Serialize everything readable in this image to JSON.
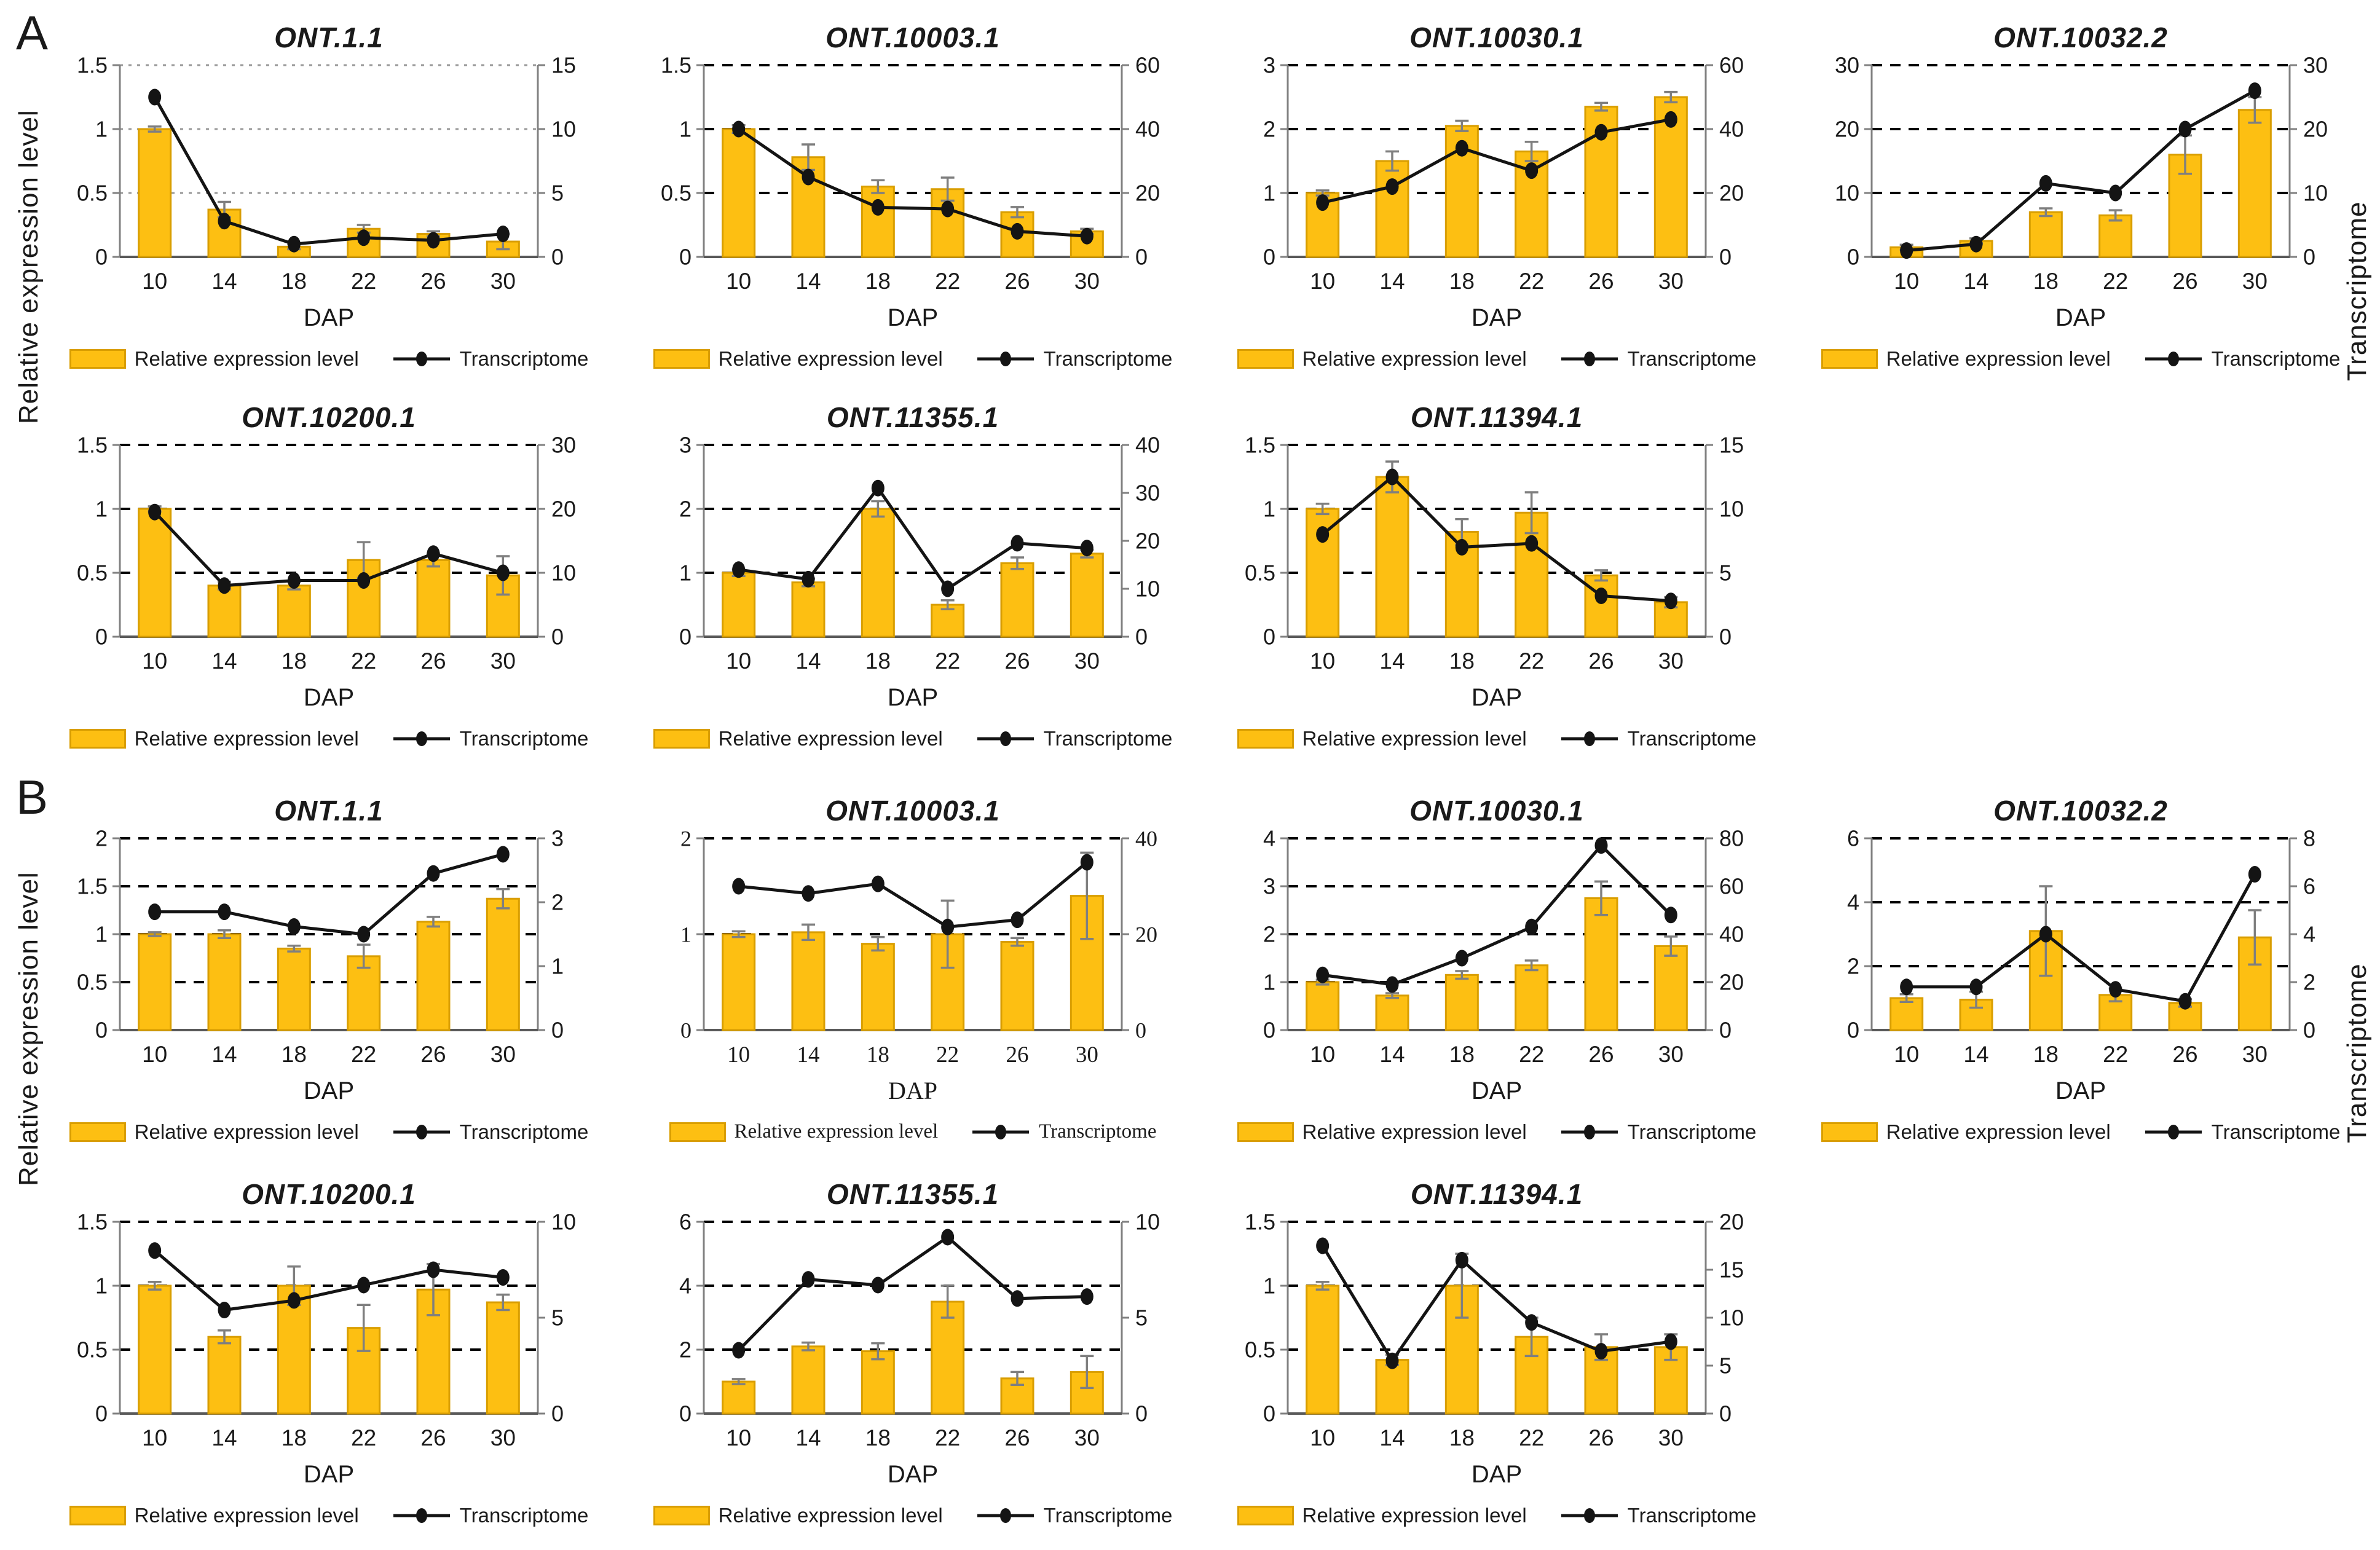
{
  "figure": {
    "panel_a_label": "A",
    "panel_b_label": "B",
    "axis_left_label": "Relative expression level",
    "axis_right_label": "Transcriptome",
    "x_axis_label": "DAP"
  },
  "legend": {
    "bar_label": "Relative expression level",
    "line_label": "Transcriptome"
  },
  "colors": {
    "bar_fill": "#fdbf12",
    "bar_border": "#d99e00",
    "line": "#141414",
    "marker": "#141414",
    "error_bar": "#7f7f7f",
    "axis_line": "#808080",
    "bottom_axis": "#595959",
    "gridline": "#000000",
    "gridline_light": "#999999"
  },
  "chart_data": [
    {
      "panel": "A",
      "row": 1,
      "col": 1,
      "type": "bar+line",
      "title": "ONT.1.1",
      "xlabel": "DAP",
      "categories": [
        10,
        14,
        18,
        22,
        26,
        30
      ],
      "left_axis": {
        "ticks": [
          0,
          0.5,
          1,
          1.5
        ],
        "max": 1.5
      },
      "right_axis": {
        "ticks": [
          0,
          5,
          10,
          15
        ],
        "max": 15
      },
      "bars": [
        1.0,
        0.37,
        0.08,
        0.22,
        0.18,
        0.12
      ],
      "bar_errors": [
        0.02,
        0.06,
        0.02,
        0.03,
        0.02,
        0.06
      ],
      "line": [
        12.5,
        2.8,
        1.0,
        1.5,
        1.3,
        1.8
      ],
      "grid_style": "dotted",
      "serif": false
    },
    {
      "panel": "A",
      "row": 1,
      "col": 2,
      "type": "bar+line",
      "title": "ONT.10003.1",
      "xlabel": "DAP",
      "categories": [
        10,
        14,
        18,
        22,
        26,
        30
      ],
      "left_axis": {
        "ticks": [
          0,
          0.5,
          1,
          1.5
        ],
        "max": 1.5
      },
      "right_axis": {
        "ticks": [
          0,
          20,
          40,
          60
        ],
        "max": 60
      },
      "bars": [
        1.0,
        0.78,
        0.55,
        0.53,
        0.35,
        0.2
      ],
      "bar_errors": [
        0.03,
        0.1,
        0.05,
        0.09,
        0.04,
        0.02
      ],
      "line": [
        40,
        25,
        15.5,
        15,
        8,
        6.5
      ],
      "grid_style": "dashed",
      "serif": false
    },
    {
      "panel": "A",
      "row": 1,
      "col": 3,
      "type": "bar+line",
      "title": "ONT.10030.1",
      "xlabel": "DAP",
      "categories": [
        10,
        14,
        18,
        22,
        26,
        30
      ],
      "left_axis": {
        "ticks": [
          0,
          1,
          2,
          3
        ],
        "max": 3
      },
      "right_axis": {
        "ticks": [
          0,
          20,
          40,
          60
        ],
        "max": 60
      },
      "bars": [
        1.0,
        1.5,
        2.05,
        1.65,
        2.35,
        2.5
      ],
      "bar_errors": [
        0.04,
        0.15,
        0.08,
        0.15,
        0.06,
        0.08
      ],
      "line": [
        17,
        22,
        34,
        27,
        39,
        43
      ],
      "grid_style": "dashed",
      "serif": false
    },
    {
      "panel": "A",
      "row": 1,
      "col": 4,
      "type": "bar+line",
      "title": "ONT.10032.2",
      "xlabel": "DAP",
      "categories": [
        10,
        14,
        18,
        22,
        26,
        30
      ],
      "left_axis": {
        "ticks": [
          0,
          10,
          20,
          30
        ],
        "max": 30
      },
      "right_axis": {
        "ticks": [
          0,
          10,
          20,
          30
        ],
        "max": 30
      },
      "bars": [
        1.5,
        2.5,
        7,
        6.5,
        16,
        23
      ],
      "bar_errors": [
        0.4,
        0.4,
        0.6,
        0.8,
        3.0,
        2.0
      ],
      "line": [
        1,
        2,
        11.5,
        10,
        20,
        26
      ],
      "grid_style": "dashed",
      "serif": false
    },
    {
      "panel": "A",
      "row": 2,
      "col": 1,
      "type": "bar+line",
      "title": "ONT.10200.1",
      "xlabel": "DAP",
      "categories": [
        10,
        14,
        18,
        22,
        26,
        30
      ],
      "left_axis": {
        "ticks": [
          0,
          0.5,
          1,
          1.5
        ],
        "max": 1.5
      },
      "right_axis": {
        "ticks": [
          0,
          10,
          20,
          30
        ],
        "max": 30
      },
      "bars": [
        1.0,
        0.4,
        0.4,
        0.6,
        0.6,
        0.48
      ],
      "bar_errors": [
        0.02,
        0.03,
        0.03,
        0.14,
        0.05,
        0.15
      ],
      "line": [
        19.5,
        8,
        8.8,
        8.8,
        13,
        10
      ],
      "grid_style": "dashed",
      "serif": false
    },
    {
      "panel": "A",
      "row": 2,
      "col": 2,
      "type": "bar+line",
      "title": "ONT.11355.1",
      "xlabel": "DAP",
      "categories": [
        10,
        14,
        18,
        22,
        26,
        30
      ],
      "left_axis": {
        "ticks": [
          0,
          1,
          2,
          3
        ],
        "max": 3
      },
      "right_axis": {
        "ticks": [
          0,
          10,
          20,
          30,
          40
        ],
        "max": 40
      },
      "bars": [
        1.0,
        0.85,
        2.0,
        0.5,
        1.15,
        1.3
      ],
      "bar_errors": [
        0.05,
        0.06,
        0.12,
        0.07,
        0.09,
        0.06
      ],
      "line": [
        14,
        12,
        31,
        10,
        19.5,
        18.5
      ],
      "grid_style": "dashed",
      "serif": false
    },
    {
      "panel": "A",
      "row": 2,
      "col": 3,
      "type": "bar+line",
      "title": "ONT.11394.1",
      "xlabel": "DAP",
      "categories": [
        10,
        14,
        18,
        22,
        26,
        30
      ],
      "left_axis": {
        "ticks": [
          0,
          0.5,
          1,
          1.5
        ],
        "max": 1.5
      },
      "right_axis": {
        "ticks": [
          0,
          5,
          10,
          15
        ],
        "max": 15
      },
      "bars": [
        1.0,
        1.25,
        0.82,
        0.97,
        0.48,
        0.27
      ],
      "bar_errors": [
        0.04,
        0.12,
        0.1,
        0.16,
        0.04,
        0.04
      ],
      "line": [
        8,
        12.5,
        7,
        7.3,
        3.2,
        2.8
      ],
      "grid_style": "dashed",
      "serif": false
    },
    {
      "panel": "B",
      "row": 1,
      "col": 1,
      "type": "bar+line",
      "title": "ONT.1.1",
      "xlabel": "DAP",
      "categories": [
        10,
        14,
        18,
        22,
        26,
        30
      ],
      "left_axis": {
        "ticks": [
          0,
          0.5,
          1,
          1.5,
          2
        ],
        "max": 2
      },
      "right_axis": {
        "ticks": [
          0,
          1,
          2,
          3
        ],
        "max": 3
      },
      "bars": [
        1.0,
        1.0,
        0.85,
        0.77,
        1.13,
        1.37
      ],
      "bar_errors": [
        0.02,
        0.04,
        0.03,
        0.12,
        0.05,
        0.1
      ],
      "line": [
        1.85,
        1.85,
        1.62,
        1.5,
        2.45,
        2.75
      ],
      "grid_style": "dashed",
      "serif": false
    },
    {
      "panel": "B",
      "row": 1,
      "col": 2,
      "type": "bar+line",
      "title": "ONT.10003.1",
      "xlabel": "DAP",
      "categories": [
        10,
        14,
        18,
        22,
        26,
        30
      ],
      "left_axis": {
        "ticks": [
          0,
          1,
          2
        ],
        "max": 2
      },
      "right_axis": {
        "ticks": [
          0,
          20,
          40
        ],
        "max": 40
      },
      "bars": [
        1.0,
        1.02,
        0.9,
        1.0,
        0.92,
        1.4
      ],
      "bar_errors": [
        0.03,
        0.08,
        0.07,
        0.35,
        0.04,
        0.45
      ],
      "line": [
        30,
        28.5,
        30.5,
        21.5,
        23,
        35
      ],
      "grid_style": "dashed",
      "serif": true
    },
    {
      "panel": "B",
      "row": 1,
      "col": 3,
      "type": "bar+line",
      "title": "ONT.10030.1",
      "xlabel": "DAP",
      "categories": [
        10,
        14,
        18,
        22,
        26,
        30
      ],
      "left_axis": {
        "ticks": [
          0,
          1,
          2,
          3,
          4
        ],
        "max": 4
      },
      "right_axis": {
        "ticks": [
          0,
          20,
          40,
          60,
          80
        ],
        "max": 80
      },
      "bars": [
        1.0,
        0.72,
        1.15,
        1.35,
        2.75,
        1.75
      ],
      "bar_errors": [
        0.05,
        0.05,
        0.08,
        0.1,
        0.35,
        0.2
      ],
      "line": [
        23,
        19,
        30,
        43,
        77,
        48
      ],
      "grid_style": "dashed",
      "serif": false
    },
    {
      "panel": "B",
      "row": 1,
      "col": 4,
      "type": "bar+line",
      "title": "ONT.10032.2",
      "xlabel": "DAP",
      "categories": [
        10,
        14,
        18,
        22,
        26,
        30
      ],
      "left_axis": {
        "ticks": [
          0,
          2,
          4,
          6
        ],
        "max": 6
      },
      "right_axis": {
        "ticks": [
          0,
          2,
          4,
          6,
          8
        ],
        "max": 8
      },
      "bars": [
        1.0,
        0.95,
        3.1,
        1.1,
        0.85,
        2.9
      ],
      "bar_errors": [
        0.12,
        0.25,
        1.4,
        0.2,
        0.12,
        0.85
      ],
      "line": [
        1.8,
        1.8,
        4.0,
        1.7,
        1.2,
        6.5
      ],
      "grid_style": "dashed",
      "serif": false
    },
    {
      "panel": "B",
      "row": 2,
      "col": 1,
      "type": "bar+line",
      "title": "ONT.10200.1",
      "xlabel": "DAP",
      "categories": [
        10,
        14,
        18,
        22,
        26,
        30
      ],
      "left_axis": {
        "ticks": [
          0,
          0.5,
          1,
          1.5
        ],
        "max": 1.5
      },
      "right_axis": {
        "ticks": [
          0,
          5,
          10
        ],
        "max": 10
      },
      "bars": [
        1.0,
        0.6,
        1.0,
        0.67,
        0.97,
        0.87
      ],
      "bar_errors": [
        0.03,
        0.05,
        0.15,
        0.18,
        0.2,
        0.06
      ],
      "line": [
        8.5,
        5.4,
        5.9,
        6.7,
        7.5,
        7.1
      ],
      "grid_style": "dashed",
      "serif": false
    },
    {
      "panel": "B",
      "row": 2,
      "col": 2,
      "type": "bar+line",
      "title": "ONT.11355.1",
      "xlabel": "DAP",
      "categories": [
        10,
        14,
        18,
        22,
        26,
        30
      ],
      "left_axis": {
        "ticks": [
          0,
          2,
          4,
          6
        ],
        "max": 6
      },
      "right_axis": {
        "ticks": [
          0,
          5,
          10
        ],
        "max": 10
      },
      "bars": [
        1.0,
        2.1,
        1.95,
        3.5,
        1.1,
        1.3
      ],
      "bar_errors": [
        0.08,
        0.12,
        0.25,
        0.5,
        0.2,
        0.5
      ],
      "line": [
        3.3,
        7.0,
        6.7,
        9.2,
        6.0,
        6.1
      ],
      "grid_style": "dashed",
      "serif": false
    },
    {
      "panel": "B",
      "row": 2,
      "col": 3,
      "type": "bar+line",
      "title": "ONT.11394.1",
      "xlabel": "DAP",
      "categories": [
        10,
        14,
        18,
        22,
        26,
        30
      ],
      "left_axis": {
        "ticks": [
          0,
          0.5,
          1,
          1.5
        ],
        "max": 1.5
      },
      "right_axis": {
        "ticks": [
          0,
          5,
          10,
          15,
          20
        ],
        "max": 20
      },
      "bars": [
        1.0,
        0.42,
        1.0,
        0.6,
        0.52,
        0.52
      ],
      "bar_errors": [
        0.03,
        0.04,
        0.25,
        0.15,
        0.1,
        0.1
      ],
      "line": [
        17.5,
        5.5,
        16,
        9.5,
        6.5,
        7.5
      ],
      "grid_style": "dashed",
      "serif": false
    }
  ]
}
